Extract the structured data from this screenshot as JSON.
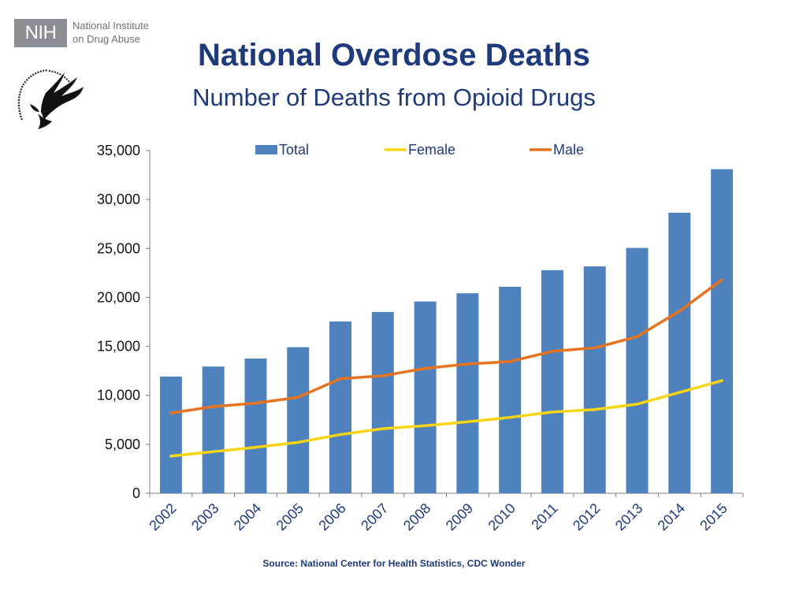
{
  "header": {
    "org_badge": "NIH",
    "org_name_line1": "National Institute",
    "org_name_line2": "on Drug Abuse",
    "seal_icon": "hhs-eagle-seal-icon",
    "title": "National Overdose Deaths",
    "subtitle": "Number of Deaths from Opioid Drugs"
  },
  "colors": {
    "title": "#1f3a7a",
    "total": "#4f81bd",
    "female": "#f5d514",
    "male": "#e8731f",
    "axis": "#7f7f7f",
    "badge": "#8a8f95"
  },
  "chart_data": {
    "type": "bar",
    "categories": [
      "2002",
      "2003",
      "2004",
      "2005",
      "2006",
      "2007",
      "2008",
      "2009",
      "2010",
      "2011",
      "2012",
      "2013",
      "2014",
      "2015"
    ],
    "series": [
      {
        "name": "Total",
        "type": "bar",
        "values": [
          11920,
          12940,
          13756,
          14918,
          17545,
          18516,
          19582,
          20422,
          21089,
          22784,
          23166,
          25052,
          28647,
          33091
        ]
      },
      {
        "name": "Female",
        "type": "line",
        "values": [
          3800,
          4250,
          4700,
          5200,
          6000,
          6600,
          6900,
          7300,
          7750,
          8300,
          8550,
          9100,
          10300,
          11500
        ]
      },
      {
        "name": "Male",
        "type": "line",
        "values": [
          8200,
          8850,
          9200,
          9800,
          11700,
          12000,
          12750,
          13200,
          13450,
          14500,
          14850,
          16000,
          18600,
          21800
        ]
      }
    ],
    "ylim": [
      0,
      35000
    ],
    "yticks": [
      "0",
      "5,000",
      "10,000",
      "15,000",
      "20,000",
      "25,000",
      "30,000",
      "35,000"
    ],
    "legend_position": "top",
    "grid": false,
    "xlabel": "",
    "ylabel": ""
  },
  "footer": {
    "source": "Source: National Center for Health Statistics, CDC Wonder"
  }
}
